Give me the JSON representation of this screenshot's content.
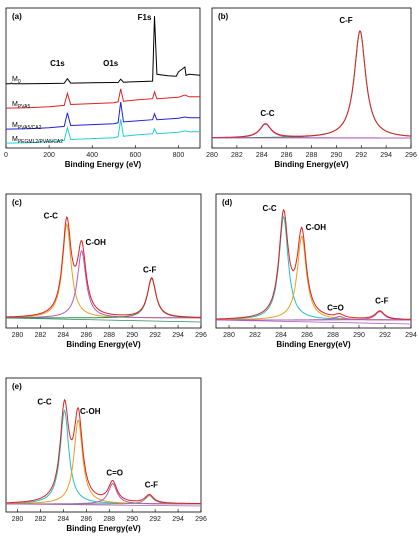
{
  "chart_data": [
    {
      "panel": "(a)",
      "type": "line",
      "xlabel": "Binding Energy (eV)",
      "xticks": [
        0,
        200,
        400,
        600,
        800
      ],
      "xlim": [
        0,
        900
      ],
      "peak_labels": [
        {
          "text": "C1s",
          "x": 285
        },
        {
          "text": "O1s",
          "x": 532
        },
        {
          "text": "F1s",
          "x": 689
        }
      ],
      "series": [
        {
          "name": "M0",
          "color": "#000000",
          "x": [
            0,
            20,
            25,
            30,
            100,
            200,
            270,
            285,
            300,
            400,
            500,
            520,
            532,
            545,
            600,
            680,
            689,
            700,
            750,
            790,
            800,
            830,
            835,
            850,
            900
          ],
          "y": [
            0.2,
            0.2,
            1.0,
            0.2,
            0.3,
            0.5,
            0.7,
            5.5,
            0.9,
            1.2,
            1.5,
            1.6,
            5.0,
            1.9,
            2.4,
            3.0,
            70,
            10,
            8.5,
            8.0,
            12.5,
            17.5,
            9.0,
            10.0,
            9.0
          ]
        },
        {
          "name": "MPVA5",
          "color": "#e02020",
          "x": [
            0,
            100,
            200,
            270,
            285,
            300,
            400,
            500,
            520,
            532,
            545,
            600,
            680,
            689,
            700,
            800,
            830,
            850,
            900
          ],
          "y": [
            0.2,
            0.3,
            0.5,
            0.8,
            3.5,
            1.0,
            1.2,
            1.4,
            1.6,
            4.5,
            1.7,
            2.0,
            2.3,
            3.8,
            2.3,
            2.6,
            3.1,
            2.7,
            2.7
          ]
        },
        {
          "name": "MPVA5/CA2",
          "color": "#2020e0",
          "x": [
            0,
            100,
            200,
            270,
            285,
            300,
            400,
            500,
            520,
            532,
            545,
            600,
            680,
            689,
            700,
            800,
            830,
            850,
            900
          ],
          "y": [
            0.2,
            0.3,
            0.5,
            0.8,
            3.8,
            1.0,
            1.2,
            1.4,
            1.6,
            6.2,
            1.8,
            2.0,
            2.3,
            3.6,
            2.3,
            2.6,
            2.9,
            2.7,
            2.7
          ]
        },
        {
          "name": "MPEGML2/PVA5/CA2",
          "color": "#20d0d0",
          "x": [
            0,
            100,
            200,
            270,
            285,
            300,
            400,
            500,
            520,
            532,
            545,
            600,
            680,
            689,
            700,
            800,
            830,
            850,
            900
          ],
          "y": [
            0.2,
            0.3,
            0.5,
            0.8,
            3.6,
            1.0,
            1.2,
            1.4,
            1.6,
            5.5,
            1.7,
            2.0,
            2.3,
            3.4,
            2.3,
            2.6,
            2.9,
            2.7,
            2.7
          ]
        }
      ],
      "legend_labels": [
        {
          "main": "M",
          "sub": "0"
        },
        {
          "main": "M",
          "sub": "PVA5"
        },
        {
          "main": "M",
          "sub": "PVA5/CA2"
        },
        {
          "main": "M",
          "sub": "PEGML2/PVA5/CA2"
        }
      ]
    },
    {
      "panel": "(b)",
      "type": "line",
      "xlabel": "Binding Energy(eV)",
      "xlim": [
        280,
        296
      ],
      "xticks": [
        280,
        282,
        284,
        286,
        288,
        290,
        292,
        294,
        296
      ],
      "peaks": [
        {
          "label": "C-C",
          "center": 284.3,
          "height": 0.11,
          "color": "#b05bc0"
        },
        {
          "label": "C-F",
          "center": 291.9,
          "height": 0.85,
          "color": "#2e8b57"
        }
      ]
    },
    {
      "panel": "(c)",
      "type": "line",
      "xlabel": "Binding Energy(eV)",
      "xlim": [
        279,
        296
      ],
      "xticks": [
        280,
        282,
        284,
        286,
        288,
        290,
        292,
        294,
        296
      ],
      "peaks": [
        {
          "label": "C-C",
          "center": 284.3,
          "height": 0.78,
          "color": "#e8a020"
        },
        {
          "label": "C-OH",
          "center": 285.6,
          "height": 0.56,
          "color": "#b05bc0"
        },
        {
          "label": "C-F",
          "center": 291.7,
          "height": 0.33,
          "color": "#2e8b57"
        }
      ]
    },
    {
      "panel": "(d)",
      "type": "line",
      "xlabel": "Binding Energy(eV)",
      "xlim": [
        279,
        294
      ],
      "xticks": [
        280,
        282,
        284,
        286,
        288,
        290,
        292,
        294
      ],
      "peaks": [
        {
          "label": "C-C",
          "center": 284.2,
          "height": 0.86,
          "color": "#20c0c0"
        },
        {
          "label": "C-OH",
          "center": 285.6,
          "height": 0.7,
          "color": "#e8a020"
        },
        {
          "label": "C=O",
          "center": 288.5,
          "height": 0.03,
          "color": "#b05bc0"
        },
        {
          "label": "C-F",
          "center": 291.6,
          "height": 0.07,
          "color": "#b05bc0"
        }
      ]
    },
    {
      "panel": "(e)",
      "type": "line",
      "xlabel": "Binding Energy(eV)",
      "xlim": [
        279,
        296
      ],
      "xticks": [
        280,
        282,
        284,
        286,
        288,
        290,
        292,
        294,
        296
      ],
      "peaks": [
        {
          "label": "C-C",
          "center": 284.1,
          "height": 0.78,
          "color": "#20c0c0"
        },
        {
          "label": "C-OH",
          "center": 285.3,
          "height": 0.7,
          "color": "#e8a020"
        },
        {
          "label": "C=O",
          "center": 288.3,
          "height": 0.17,
          "color": "#b05bc0"
        },
        {
          "label": "C-F",
          "center": 291.5,
          "height": 0.07,
          "color": "#888888"
        }
      ]
    }
  ]
}
